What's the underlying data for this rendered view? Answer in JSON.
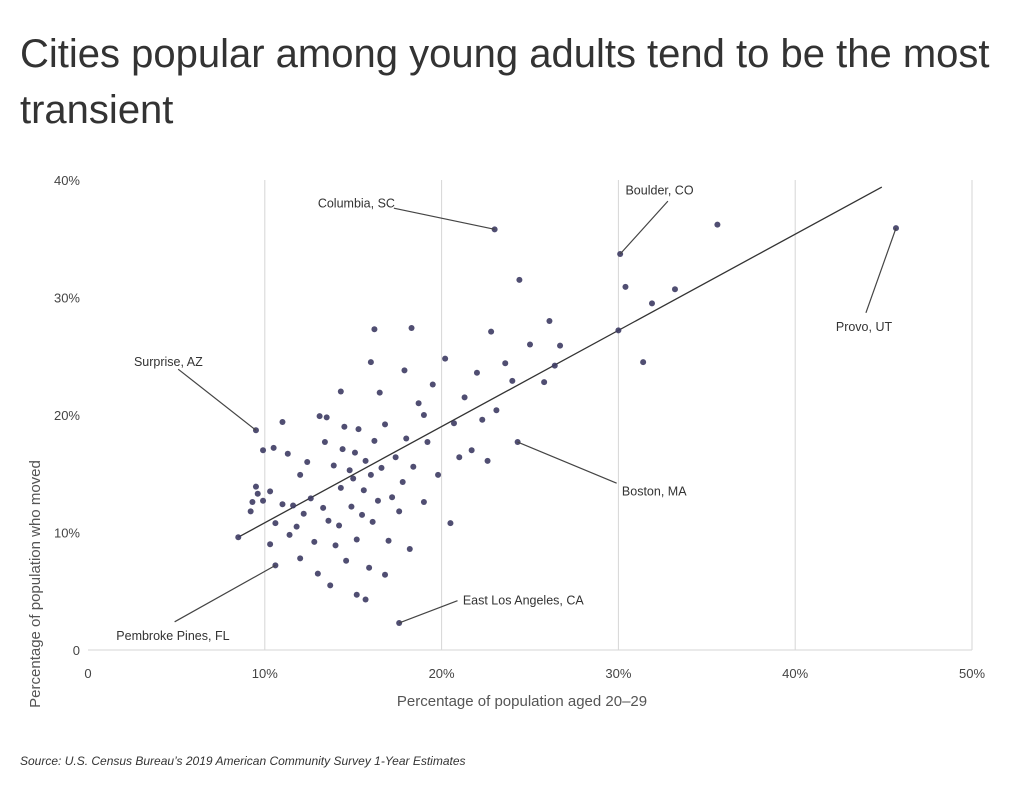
{
  "title": "Cities popular among young adults tend to be the most transient",
  "source": "Source:  U.S. Census Bureau’s 2019 American Community Survey 1-Year Estimates",
  "colors": {
    "point": "#3d3b63",
    "trend": "#333333",
    "grid": "#d6d6d6",
    "text": "#333333"
  },
  "chart_data": {
    "type": "scatter",
    "xlabel": "Percentage of population aged 20–29",
    "ylabel": "Percentage of population who moved",
    "xlim": [
      0,
      50
    ],
    "ylim": [
      0,
      40
    ],
    "x_ticks": [
      {
        "value": 0,
        "label": "0"
      },
      {
        "value": 10,
        "label": "10%"
      },
      {
        "value": 20,
        "label": "20%"
      },
      {
        "value": 30,
        "label": "30%"
      },
      {
        "value": 40,
        "label": "40%"
      },
      {
        "value": 50,
        "label": "50%"
      }
    ],
    "y_ticks": [
      {
        "value": 0,
        "label": "0"
      },
      {
        "value": 10,
        "label": "10%"
      },
      {
        "value": 20,
        "label": "20%"
      },
      {
        "value": 30,
        "label": "30%"
      },
      {
        "value": 40,
        "label": "40%"
      }
    ],
    "grid": "vertical",
    "trendline": [
      [
        8.5,
        9.6
      ],
      [
        44.9,
        39.4
      ]
    ],
    "annotations": [
      {
        "label": "Columbia, SC",
        "point": [
          23.0,
          35.8
        ],
        "text_at": [
          13.0,
          38.0
        ],
        "line_from": [
          17.3,
          37.6
        ],
        "anchor": "start"
      },
      {
        "label": "Boulder, CO",
        "point": [
          30.1,
          33.7
        ],
        "text_at": [
          30.4,
          39.1
        ],
        "line_from": [
          32.8,
          38.2
        ],
        "anchor": "start"
      },
      {
        "label": "Provo, UT",
        "point": [
          45.7,
          35.9
        ],
        "text_at": [
          42.3,
          27.5
        ],
        "line_from": [
          44.0,
          28.7
        ],
        "anchor": "start"
      },
      {
        "label": "Surprise, AZ",
        "point": [
          9.5,
          18.7
        ],
        "text_at": [
          2.6,
          24.5
        ],
        "line_from": [
          5.1,
          23.9
        ],
        "anchor": "start"
      },
      {
        "label": "Boston, MA",
        "point": [
          24.3,
          17.7
        ],
        "text_at": [
          30.2,
          13.5
        ],
        "line_from": [
          29.9,
          14.2
        ],
        "anchor": "start"
      },
      {
        "label": "East Los Angeles, CA",
        "point": [
          17.6,
          2.3
        ],
        "text_at": [
          21.2,
          4.2
        ],
        "line_from": [
          20.9,
          4.2
        ],
        "anchor": "start"
      },
      {
        "label": "Pembroke Pines, FL",
        "point": [
          10.6,
          7.2
        ],
        "text_at": [
          1.6,
          1.2
        ],
        "line_from": [
          4.9,
          2.4
        ],
        "anchor": "start"
      }
    ],
    "points": [
      [
        8.5,
        9.6
      ],
      [
        9.2,
        11.8
      ],
      [
        9.3,
        12.6
      ],
      [
        9.6,
        13.3
      ],
      [
        9.5,
        13.9
      ],
      [
        9.9,
        17.0
      ],
      [
        10.3,
        13.5
      ],
      [
        10.6,
        10.8
      ],
      [
        10.3,
        9.0
      ],
      [
        10.5,
        17.2
      ],
      [
        11.0,
        12.4
      ],
      [
        11.0,
        19.4
      ],
      [
        11.3,
        16.7
      ],
      [
        11.6,
        12.3
      ],
      [
        11.8,
        10.5
      ],
      [
        12.0,
        14.9
      ],
      [
        12.2,
        11.6
      ],
      [
        12.6,
        12.9
      ],
      [
        12.4,
        16.0
      ],
      [
        12.8,
        9.2
      ],
      [
        13.0,
        6.5
      ],
      [
        13.3,
        12.1
      ],
      [
        13.4,
        17.7
      ],
      [
        13.6,
        11.0
      ],
      [
        13.5,
        19.8
      ],
      [
        13.9,
        15.7
      ],
      [
        14.0,
        8.9
      ],
      [
        14.2,
        10.6
      ],
      [
        14.3,
        13.8
      ],
      [
        14.4,
        17.1
      ],
      [
        14.5,
        19.0
      ],
      [
        14.6,
        7.6
      ],
      [
        14.8,
        15.3
      ],
      [
        14.9,
        12.2
      ],
      [
        15.0,
        14.6
      ],
      [
        15.1,
        16.8
      ],
      [
        15.2,
        9.4
      ],
      [
        15.3,
        18.8
      ],
      [
        15.5,
        11.5
      ],
      [
        15.6,
        13.6
      ],
      [
        15.7,
        16.1
      ],
      [
        15.9,
        7.0
      ],
      [
        16.0,
        14.9
      ],
      [
        16.1,
        10.9
      ],
      [
        16.2,
        17.8
      ],
      [
        16.4,
        12.7
      ],
      [
        16.6,
        15.5
      ],
      [
        16.8,
        19.2
      ],
      [
        17.0,
        9.3
      ],
      [
        17.2,
        13.0
      ],
      [
        17.4,
        16.4
      ],
      [
        17.6,
        11.8
      ],
      [
        17.8,
        14.3
      ],
      [
        18.0,
        18.0
      ],
      [
        18.2,
        8.6
      ],
      [
        18.4,
        15.6
      ],
      [
        18.7,
        21.0
      ],
      [
        19.0,
        12.6
      ],
      [
        19.2,
        17.7
      ],
      [
        19.5,
        22.6
      ],
      [
        19.8,
        14.9
      ],
      [
        20.2,
        24.8
      ],
      [
        20.5,
        10.8
      ],
      [
        20.7,
        19.3
      ],
      [
        21.0,
        16.4
      ],
      [
        21.3,
        21.5
      ],
      [
        21.7,
        17.0
      ],
      [
        22.0,
        23.6
      ],
      [
        22.3,
        19.6
      ],
      [
        22.6,
        16.1
      ],
      [
        22.8,
        27.1
      ],
      [
        23.1,
        20.4
      ],
      [
        23.6,
        24.4
      ],
      [
        24.0,
        22.9
      ],
      [
        24.4,
        31.5
      ],
      [
        25.0,
        26.0
      ],
      [
        25.8,
        22.8
      ],
      [
        26.1,
        28.0
      ],
      [
        26.4,
        24.2
      ],
      [
        26.7,
        25.9
      ],
      [
        30.0,
        27.2
      ],
      [
        30.4,
        30.9
      ],
      [
        31.4,
        24.5
      ],
      [
        31.9,
        29.5
      ],
      [
        33.2,
        30.7
      ],
      [
        35.6,
        36.2
      ],
      [
        23.0,
        35.8
      ],
      [
        30.1,
        33.7
      ],
      [
        45.7,
        35.9
      ],
      [
        9.5,
        18.7
      ],
      [
        24.3,
        17.7
      ],
      [
        17.6,
        2.3
      ],
      [
        10.6,
        7.2
      ],
      [
        15.2,
        4.7
      ],
      [
        15.7,
        4.3
      ],
      [
        16.2,
        27.3
      ],
      [
        18.3,
        27.4
      ],
      [
        16.0,
        24.5
      ],
      [
        17.9,
        23.8
      ],
      [
        13.1,
        19.9
      ],
      [
        16.5,
        21.9
      ],
      [
        14.3,
        22.0
      ],
      [
        19.0,
        20.0
      ],
      [
        12.0,
        7.8
      ],
      [
        11.4,
        9.8
      ],
      [
        9.9,
        12.7
      ],
      [
        13.7,
        5.5
      ],
      [
        16.8,
        6.4
      ]
    ]
  }
}
